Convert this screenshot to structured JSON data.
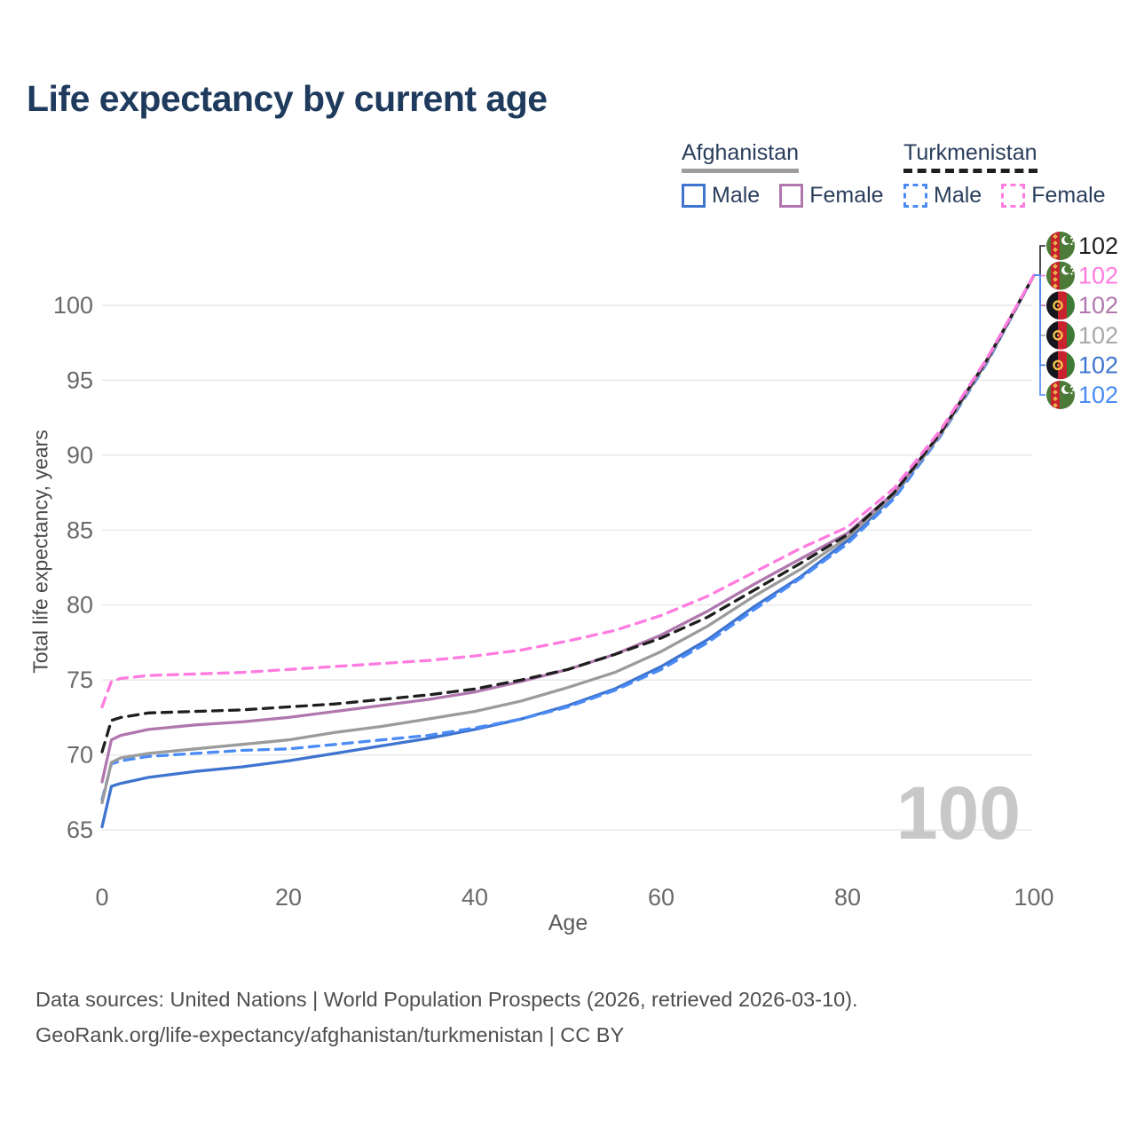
{
  "title": "Life expectancy by current age",
  "legend": {
    "groups": [
      {
        "country": "Afghanistan",
        "line_style": "solid",
        "underline_color": "#9c9c9c",
        "underline_style": "solid",
        "items": [
          {
            "label": "Male",
            "color": "#3e74cf",
            "border_style": "solid"
          },
          {
            "label": "Female",
            "color": "#b077ae",
            "border_style": "solid"
          }
        ]
      },
      {
        "country": "Turkmenistan",
        "line_style": "dashed",
        "underline_color": "#1f1f1f",
        "underline_style": "dashed",
        "items": [
          {
            "label": "Male",
            "color": "#4a8bf5",
            "border_style": "dashed"
          },
          {
            "label": "Female",
            "color": "#ff7be0",
            "border_style": "dashed"
          }
        ]
      }
    ]
  },
  "watermark_age": "100",
  "footer": {
    "line1": "Data sources: United Nations | World Population Prospects (2026, retrieved 2026-03-10).",
    "line2": "GeoRank.org/life-expectancy/afghanistan/turkmenistan | CC BY"
  },
  "chart_data": {
    "type": "line",
    "title": "Life expectancy by current age",
    "xlabel": "Age",
    "ylabel": "Total life expectancy, years",
    "x_ticks": [
      0,
      20,
      40,
      60,
      80,
      100
    ],
    "y_ticks": [
      65,
      70,
      75,
      80,
      85,
      90,
      95,
      100
    ],
    "xlim": [
      0,
      100
    ],
    "ylim": [
      63.5,
      103
    ],
    "grid": "horizontal",
    "legend_position": "top-right",
    "x": [
      0,
      1,
      2,
      5,
      10,
      15,
      20,
      25,
      30,
      35,
      40,
      45,
      50,
      55,
      60,
      65,
      70,
      75,
      80,
      85,
      90,
      95,
      100
    ],
    "series": [
      {
        "name": "Afghanistan Male",
        "country": "Afghanistan",
        "sex": "male",
        "style": "solid",
        "color": "#3e74cf",
        "values": [
          65.2,
          67.9,
          68.1,
          68.5,
          68.9,
          69.2,
          69.6,
          70.1,
          70.6,
          71.1,
          71.7,
          72.4,
          73.3,
          74.4,
          75.9,
          77.7,
          79.9,
          81.9,
          84.3,
          87.3,
          91.4,
          96.3,
          102
        ]
      },
      {
        "name": "Afghanistan Female",
        "country": "Afghanistan",
        "sex": "female",
        "style": "solid",
        "color": "#b077ae",
        "values": [
          68.2,
          71.0,
          71.3,
          71.7,
          72.0,
          72.2,
          72.5,
          72.9,
          73.3,
          73.7,
          74.2,
          74.9,
          75.7,
          76.7,
          78.0,
          79.6,
          81.4,
          83.1,
          84.8,
          87.5,
          91.5,
          96.4,
          102
        ]
      },
      {
        "name": "Afghanistan Both sexes",
        "country": "Afghanistan",
        "sex": "both",
        "style": "solid",
        "color": "#9b9b9b",
        "values": [
          66.8,
          69.5,
          69.8,
          70.1,
          70.4,
          70.7,
          71.0,
          71.5,
          71.9,
          72.4,
          72.9,
          73.6,
          74.5,
          75.5,
          76.9,
          78.6,
          80.6,
          82.4,
          84.5,
          87.4,
          91.4,
          96.3,
          102
        ]
      },
      {
        "name": "Turkmenistan Male",
        "country": "Turkmenistan",
        "sex": "male",
        "style": "dashed",
        "color": "#4a8bf5",
        "values": [
          67.0,
          69.4,
          69.6,
          69.9,
          70.1,
          70.3,
          70.4,
          70.7,
          71.0,
          71.3,
          71.8,
          72.4,
          73.2,
          74.3,
          75.7,
          77.5,
          79.7,
          81.8,
          84.1,
          87.1,
          91.3,
          96.2,
          102
        ]
      },
      {
        "name": "Turkmenistan Female",
        "country": "Turkmenistan",
        "sex": "female",
        "style": "dashed",
        "color": "#ff7be0",
        "values": [
          73.2,
          74.9,
          75.1,
          75.3,
          75.4,
          75.5,
          75.7,
          75.9,
          76.1,
          76.3,
          76.6,
          77.0,
          77.6,
          78.3,
          79.3,
          80.6,
          82.2,
          83.8,
          85.2,
          87.8,
          91.7,
          96.5,
          102
        ]
      },
      {
        "name": "Turkmenistan Both sexes",
        "country": "Turkmenistan",
        "sex": "both",
        "style": "dashed",
        "color": "#1f1f1f",
        "values": [
          70.2,
          72.3,
          72.5,
          72.8,
          72.9,
          73.0,
          73.2,
          73.4,
          73.7,
          74.0,
          74.4,
          75.0,
          75.7,
          76.7,
          77.8,
          79.2,
          81.0,
          82.8,
          84.7,
          87.5,
          91.5,
          96.4,
          102
        ]
      }
    ],
    "draw_order": [
      0,
      3,
      2,
      1,
      5,
      4
    ],
    "end_labels": [
      {
        "flag": "turkmenistan-flag-icon",
        "series": "Turkmenistan Both sexes",
        "value": "102",
        "color": "#1f1f1f"
      },
      {
        "flag": "turkmenistan-flag-icon",
        "series": "Turkmenistan Female",
        "value": "102",
        "color": "#ff7be0"
      },
      {
        "flag": "afghanistan-flag-icon",
        "series": "Afghanistan Female",
        "value": "102",
        "color": "#b077ae"
      },
      {
        "flag": "afghanistan-flag-icon",
        "series": "Afghanistan Both sexes",
        "value": "102",
        "color": "#a8a8a8"
      },
      {
        "flag": "afghanistan-flag-icon",
        "series": "Afghanistan Male",
        "value": "102",
        "color": "#3e74cf"
      },
      {
        "flag": "turkmenistan-flag-icon",
        "series": "Turkmenistan Male",
        "value": "102",
        "color": "#4a8bf5"
      }
    ],
    "current_age_marker": "100"
  }
}
